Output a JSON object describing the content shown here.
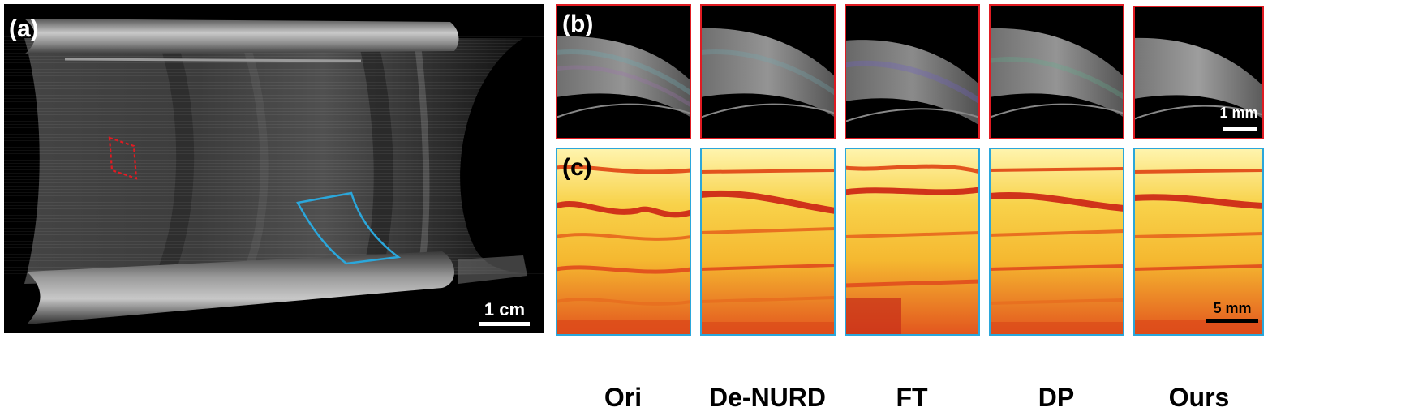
{
  "panels": {
    "a": {
      "label": "(a)",
      "scale_bar": "1 cm"
    },
    "b": {
      "label": "(b)",
      "scale_bar": "1 mm",
      "frame_color": "#e01b22"
    },
    "c": {
      "label": "(c)",
      "scale_bar": "5 mm",
      "frame_color": "#2ba7db"
    }
  },
  "methods": [
    "Ori",
    "De-NURD",
    "FT",
    "DP",
    "Ours"
  ]
}
